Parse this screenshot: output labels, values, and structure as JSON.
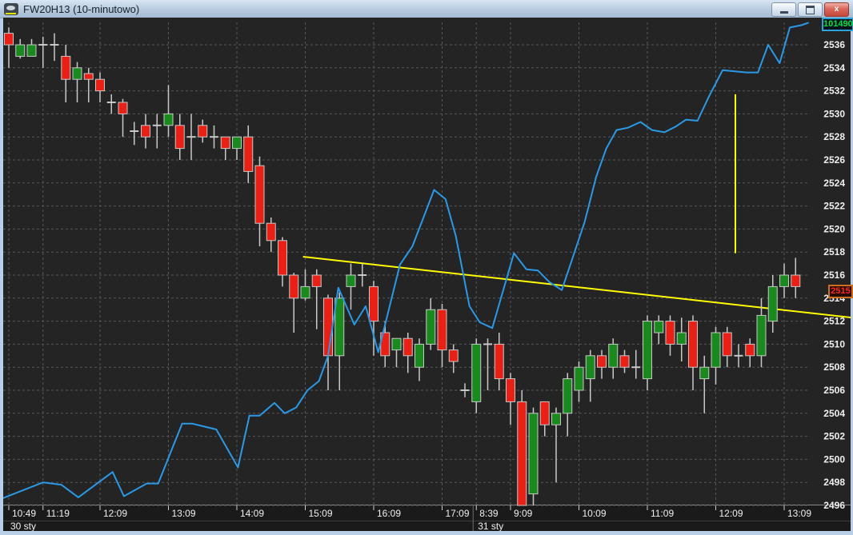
{
  "window": {
    "title": "FW20H13 (10-minutowo)",
    "buttons": {
      "minimize": "minimize",
      "maximize": "maximize",
      "close": "close",
      "close_glyph": "x"
    }
  },
  "colors": {
    "background": "#242424",
    "grid": "#575757",
    "bull": "#1a8a1e",
    "bear": "#e82015",
    "candle_border": "#c8c8c8",
    "indicator_line": "#2b99e6",
    "drawing": "#ffff00",
    "axis_text": "#f0f0f0",
    "frame": "#b9cfe8",
    "last_price_text": "#ff2a1a",
    "last_price_border": "#cf6f1d",
    "indicator_text": "#00e040",
    "indicator_border": "#2fa3d8"
  },
  "chart_data": {
    "type": "candlestick",
    "title": "FW20H13 (10-minutowo)",
    "instrument": "FW20H13",
    "interval": "10-minutowo",
    "ylim": [
      2496,
      2538
    ],
    "price_step": 2,
    "grid": true,
    "price_labels": [
      2536,
      2534,
      2532,
      2530,
      2528,
      2526,
      2524,
      2522,
      2520,
      2518,
      2516,
      2514,
      2512,
      2510,
      2508,
      2506,
      2504,
      2502,
      2500,
      2498,
      2496
    ],
    "last_price": "2515",
    "indicator_last_value": "101490",
    "time_ticks": [
      {
        "i": 0,
        "label": "10:49"
      },
      {
        "i": 3,
        "label": "11:19"
      },
      {
        "i": 8,
        "label": "12:09"
      },
      {
        "i": 14,
        "label": "13:09"
      },
      {
        "i": 20,
        "label": "14:09"
      },
      {
        "i": 26,
        "label": "15:09"
      },
      {
        "i": 32,
        "label": "16:09"
      },
      {
        "i": 38,
        "label": "17:09"
      },
      {
        "i": 41,
        "label": "8:39"
      },
      {
        "i": 44,
        "label": "9:09"
      },
      {
        "i": 50,
        "label": "10:09"
      },
      {
        "i": 56,
        "label": "11:09"
      },
      {
        "i": 62,
        "label": "12:09"
      },
      {
        "i": 68,
        "label": "13:09"
      }
    ],
    "date_labels": [
      {
        "i": 0,
        "label": "30 sty"
      },
      {
        "i": 41,
        "label": "31 sty"
      }
    ],
    "candles_ohlc": [
      [
        2537,
        2537.5,
        2534,
        2536
      ],
      [
        2535,
        2536.5,
        2534.8,
        2536
      ],
      [
        2535,
        2536.5,
        2535,
        2536
      ],
      [
        2536,
        2536.7,
        2534,
        2536
      ],
      [
        2536,
        2537,
        2534.6,
        2536
      ],
      [
        2535,
        2536,
        2531,
        2533
      ],
      [
        2533,
        2534.5,
        2531,
        2534
      ],
      [
        2533.5,
        2534,
        2531,
        2533
      ],
      [
        2533,
        2533.6,
        2531,
        2532
      ],
      [
        2531,
        2531.7,
        2530,
        2531
      ],
      [
        2531,
        2531.3,
        2528,
        2530
      ],
      [
        2528.5,
        2529.3,
        2527.3,
        2528.5
      ],
      [
        2529,
        2530,
        2527,
        2528
      ],
      [
        2529,
        2530,
        2527,
        2529
      ],
      [
        2529,
        2532.5,
        2528,
        2530
      ],
      [
        2529,
        2530,
        2526,
        2527
      ],
      [
        2528,
        2530,
        2526,
        2528
      ],
      [
        2529,
        2529.5,
        2527.5,
        2528
      ],
      [
        2528,
        2529,
        2527,
        2528
      ],
      [
        2528,
        2528,
        2526,
        2527
      ],
      [
        2527,
        2528,
        2526,
        2528
      ],
      [
        2528,
        2529,
        2524,
        2525
      ],
      [
        2525.5,
        2526.3,
        2518.5,
        2520.5
      ],
      [
        2520.5,
        2521,
        2518,
        2519
      ],
      [
        2519,
        2519.3,
        2515,
        2516
      ],
      [
        2516,
        2516.2,
        2511,
        2514
      ],
      [
        2514,
        2516.5,
        2513.8,
        2515
      ],
      [
        2516,
        2516.5,
        2511.3,
        2515
      ],
      [
        2514,
        2514.3,
        2506,
        2509
      ],
      [
        2509,
        2514.5,
        2506,
        2514
      ],
      [
        2515,
        2517,
        2513,
        2516
      ],
      [
        2516,
        2517,
        2515,
        2516
      ],
      [
        2515,
        2515.5,
        2509,
        2512
      ],
      [
        2511,
        2512,
        2508,
        2509
      ],
      [
        2509.5,
        2510.5,
        2508,
        2510.5
      ],
      [
        2510.5,
        2511,
        2507.5,
        2509
      ],
      [
        2508,
        2510.5,
        2506.8,
        2510
      ],
      [
        2510,
        2514,
        2509.5,
        2513
      ],
      [
        2513,
        2513.5,
        2508,
        2509.5
      ],
      [
        2509.5,
        2510,
        2507.5,
        2508.5
      ],
      [
        2506,
        2506.6,
        2505.4,
        2506
      ],
      [
        2505,
        2510.5,
        2504,
        2510
      ],
      [
        2510,
        2510.5,
        2506,
        2510
      ],
      [
        2510,
        2511,
        2506,
        2507
      ],
      [
        2507,
        2507.5,
        2503,
        2505
      ],
      [
        2505,
        2506,
        2496,
        2496
      ],
      [
        2497,
        2504.5,
        2496,
        2504
      ],
      [
        2505,
        2505,
        2502,
        2503
      ],
      [
        2503,
        2504.5,
        2498,
        2504
      ],
      [
        2504,
        2507.5,
        2502,
        2507
      ],
      [
        2506,
        2508.5,
        2505,
        2508
      ],
      [
        2507,
        2509.5,
        2505,
        2509
      ],
      [
        2509,
        2509.5,
        2507,
        2508
      ],
      [
        2508,
        2510.5,
        2507,
        2510
      ],
      [
        2509,
        2509.5,
        2507.5,
        2508
      ],
      [
        2508,
        2509.5,
        2507,
        2508
      ],
      [
        2507,
        2512.5,
        2506,
        2512
      ],
      [
        2511,
        2512.5,
        2510,
        2512
      ],
      [
        2512,
        2512.5,
        2509,
        2510
      ],
      [
        2510,
        2512.3,
        2508.5,
        2511
      ],
      [
        2512,
        2512.5,
        2506,
        2508
      ],
      [
        2507,
        2509,
        2504,
        2508
      ],
      [
        2508,
        2511.5,
        2506.5,
        2511
      ],
      [
        2511,
        2511.5,
        2508,
        2509
      ],
      [
        2509,
        2510,
        2508,
        2509
      ],
      [
        2510,
        2510.5,
        2508,
        2509
      ],
      [
        2509,
        2514,
        2508,
        2512.5
      ],
      [
        2512,
        2516,
        2511,
        2515
      ],
      [
        2515,
        2517,
        2514,
        2516
      ],
      [
        2516,
        2517.5,
        2514,
        2515
      ]
    ],
    "line_series": {
      "name": "blue-indicator-line",
      "points": [
        [
          -0.6,
          2496.6
        ],
        [
          3,
          2498
        ],
        [
          4.6,
          2497.8
        ],
        [
          6.1,
          2496.7
        ],
        [
          9.1,
          2498.9
        ],
        [
          10.1,
          2496.8
        ],
        [
          12.1,
          2497.9
        ],
        [
          13.1,
          2497.9
        ],
        [
          15.2,
          2503.1
        ],
        [
          16.1,
          2503.1
        ],
        [
          18.2,
          2502.6
        ],
        [
          20.1,
          2499.3
        ],
        [
          21.1,
          2503.8
        ],
        [
          22,
          2503.8
        ],
        [
          23.3,
          2504.9
        ],
        [
          24.2,
          2504
        ],
        [
          25.2,
          2504.5
        ],
        [
          26.2,
          2506
        ],
        [
          27.2,
          2506.8
        ],
        [
          28,
          2509
        ],
        [
          28.9,
          2514.9
        ],
        [
          30.3,
          2511.7
        ],
        [
          31.3,
          2513.3
        ],
        [
          32.4,
          2509.3
        ],
        [
          34.3,
          2516.9
        ],
        [
          35.4,
          2518.5
        ],
        [
          37.3,
          2523.4
        ],
        [
          38.3,
          2522.6
        ],
        [
          39.2,
          2519.4
        ],
        [
          40.4,
          2513.3
        ],
        [
          41.3,
          2511.9
        ],
        [
          42.4,
          2511.4
        ],
        [
          44.3,
          2517.9
        ],
        [
          45.4,
          2516.5
        ],
        [
          46.4,
          2516.4
        ],
        [
          47.4,
          2515.4
        ],
        [
          48.5,
          2514.7
        ],
        [
          50.5,
          2520.6
        ],
        [
          51.5,
          2524.5
        ],
        [
          52.4,
          2527
        ],
        [
          53.3,
          2528.6
        ],
        [
          54.3,
          2528.8
        ],
        [
          55.4,
          2529.3
        ],
        [
          56.4,
          2528.6
        ],
        [
          57.5,
          2528.4
        ],
        [
          58.5,
          2528.9
        ],
        [
          59.4,
          2529.5
        ],
        [
          60.4,
          2529.4
        ],
        [
          61.4,
          2531.5
        ],
        [
          62.6,
          2533.8
        ],
        [
          63.6,
          2533.7
        ],
        [
          64.7,
          2533.6
        ],
        [
          65.7,
          2533.6
        ],
        [
          66.6,
          2536
        ],
        [
          67.6,
          2534.4
        ],
        [
          68.5,
          2537.5
        ],
        [
          69.5,
          2537.7
        ],
        [
          70.1,
          2537.9
        ]
      ]
    },
    "drawings": {
      "trendline": {
        "i1": 25.8,
        "p1": 2517.6,
        "i2": 74,
        "p2": 2512.3
      },
      "vertical_line": {
        "i": 64,
        "p_top": 2531.7,
        "p_bottom": 2517.9
      }
    }
  }
}
